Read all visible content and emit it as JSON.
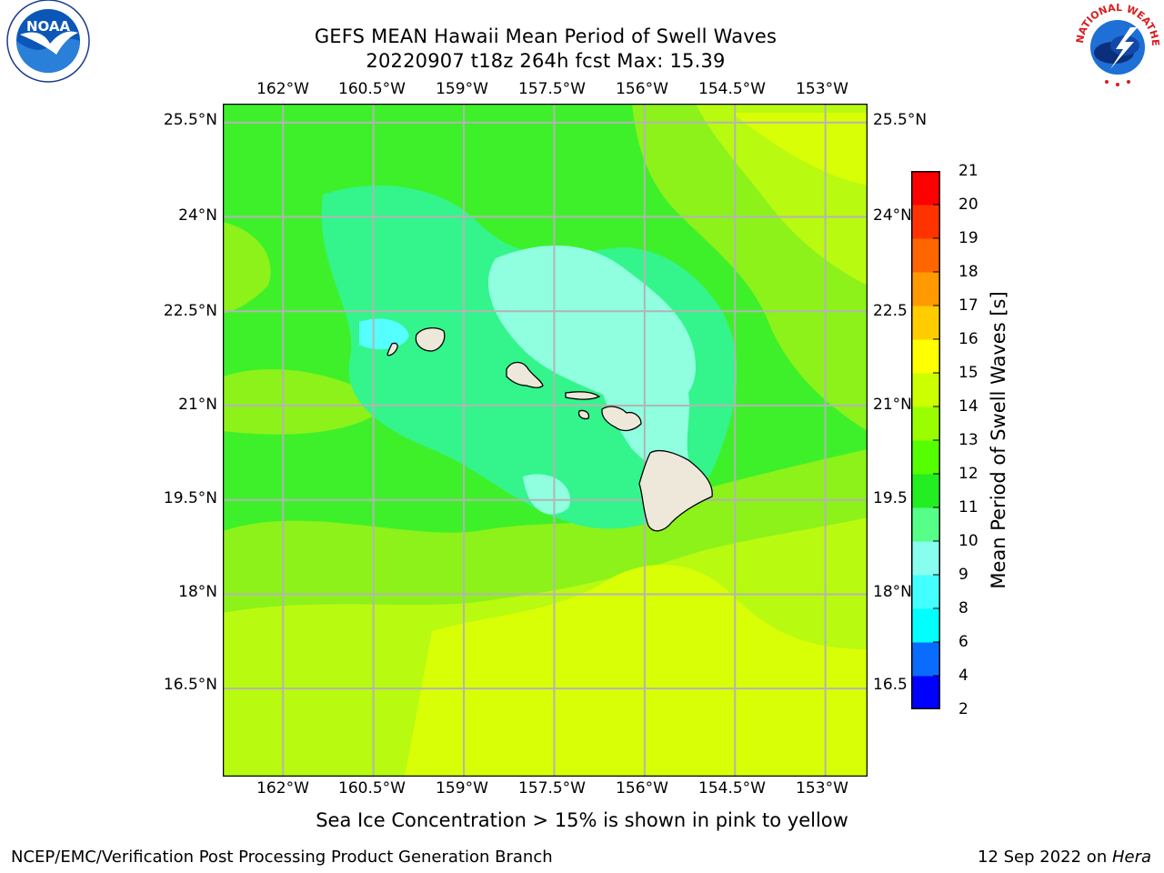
{
  "title": {
    "line1": "GEFS MEAN Hawaii Mean Period of Swell Waves",
    "line2": "20220907 t18z 264h fcst   Max: 15.39"
  },
  "axes": {
    "lon_labels": [
      "162°W",
      "160.5°W",
      "159°W",
      "157.5°W",
      "156°W",
      "154.5°W",
      "153°W"
    ],
    "lat_labels_left": [
      "25.5°N",
      "24°N",
      "22.5°N",
      "21°N",
      "19.5°N",
      "18°N",
      "16.5°N"
    ],
    "lat_labels_right": [
      "25.5°N",
      "24°N",
      "22.5",
      "21°N",
      "19.5",
      "18°N",
      "16.5"
    ]
  },
  "colorbar": {
    "title": "Mean Period of Swell Waves [s]",
    "levels": [
      "2",
      "4",
      "6",
      "8",
      "9",
      "10",
      "11",
      "12",
      "13",
      "14",
      "15",
      "16",
      "17",
      "18",
      "19",
      "20",
      "21"
    ],
    "colors": [
      "#0000ff",
      "#0a6cff",
      "#00ffff",
      "#44ffff",
      "#88ffee",
      "#55ff88",
      "#22ee22",
      "#55ff00",
      "#99ff00",
      "#ccff00",
      "#ffff00",
      "#ffcc00",
      "#ff9900",
      "#ff6600",
      "#ff3300",
      "#ff0000"
    ]
  },
  "map": {
    "lon_range": [
      -163,
      -152.3
    ],
    "lat_range": [
      15.1,
      25.8
    ],
    "grid": true,
    "grid_lons": [
      -162,
      -160.5,
      -159,
      -157.5,
      -156,
      -154.5,
      -153
    ],
    "grid_lats": [
      25.5,
      24,
      22.5,
      21,
      19.5,
      18,
      16.5
    ],
    "land_color": "#ede8da",
    "grid_color": "#b4b4b4"
  },
  "caption": "Sea Ice Concentration > 15% is shown in pink to yellow",
  "footer": {
    "left": "NCEP/EMC/Verification Post Processing Product Generation Branch",
    "right_date": "12 Sep 2022 on ",
    "right_host": "Hera"
  },
  "logos": {
    "noaa_text": "NOAA",
    "nws_text": "NATIONAL WEATHER SERVICE"
  }
}
